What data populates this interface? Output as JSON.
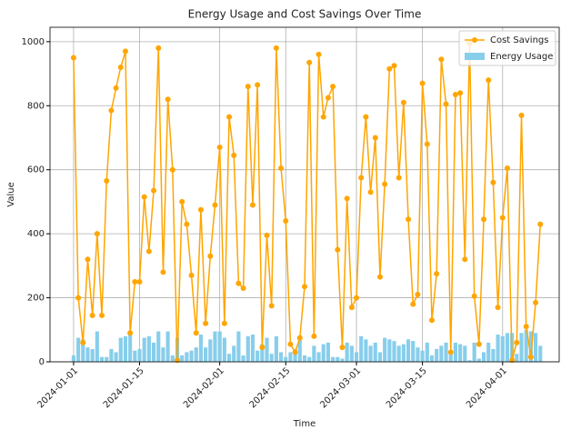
{
  "chart_data": {
    "type": "line_bar",
    "title": "Energy Usage and Cost Savings Over Time",
    "xlabel": "Time",
    "ylabel": "Value",
    "x": [
      "2024-01-01",
      "2024-01-02",
      "2024-01-03",
      "2024-01-04",
      "2024-01-05",
      "2024-01-06",
      "2024-01-07",
      "2024-01-08",
      "2024-01-09",
      "2024-01-10",
      "2024-01-11",
      "2024-01-12",
      "2024-01-13",
      "2024-01-14",
      "2024-01-15",
      "2024-01-16",
      "2024-01-17",
      "2024-01-18",
      "2024-01-19",
      "2024-01-20",
      "2024-01-21",
      "2024-01-22",
      "2024-01-23",
      "2024-01-24",
      "2024-01-25",
      "2024-01-26",
      "2024-01-27",
      "2024-01-28",
      "2024-01-29",
      "2024-01-30",
      "2024-01-31",
      "2024-02-01",
      "2024-02-02",
      "2024-02-03",
      "2024-02-04",
      "2024-02-05",
      "2024-02-06",
      "2024-02-07",
      "2024-02-08",
      "2024-02-09",
      "2024-02-10",
      "2024-02-11",
      "2024-02-12",
      "2024-02-13",
      "2024-02-14",
      "2024-02-15",
      "2024-02-16",
      "2024-02-17",
      "2024-02-18",
      "2024-02-19",
      "2024-02-20",
      "2024-02-21",
      "2024-02-22",
      "2024-02-23",
      "2024-02-24",
      "2024-02-25",
      "2024-02-26",
      "2024-02-27",
      "2024-02-28",
      "2024-02-29",
      "2024-03-01",
      "2024-03-02",
      "2024-03-03",
      "2024-03-04",
      "2024-03-05",
      "2024-03-06",
      "2024-03-07",
      "2024-03-08",
      "2024-03-09",
      "2024-03-10",
      "2024-03-11",
      "2024-03-12",
      "2024-03-13",
      "2024-03-14",
      "2024-03-15",
      "2024-03-16",
      "2024-03-17",
      "2024-03-18",
      "2024-03-19",
      "2024-03-20",
      "2024-03-21",
      "2024-03-22",
      "2024-03-23",
      "2024-03-24",
      "2024-03-25",
      "2024-03-26",
      "2024-03-27",
      "2024-03-28",
      "2024-03-29",
      "2024-03-30",
      "2024-03-31",
      "2024-04-01",
      "2024-04-02",
      "2024-04-03",
      "2024-04-04",
      "2024-04-05",
      "2024-04-06",
      "2024-04-07",
      "2024-04-08",
      "2024-04-09"
    ],
    "series": [
      {
        "name": "Cost Savings",
        "kind": "line",
        "color": "#FFA500",
        "values": [
          950,
          200,
          60,
          320,
          145,
          400,
          145,
          565,
          785,
          855,
          920,
          970,
          90,
          250,
          250,
          515,
          345,
          535,
          980,
          280,
          820,
          600,
          5,
          500,
          430,
          270,
          90,
          475,
          120,
          330,
          490,
          670,
          120,
          765,
          645,
          245,
          230,
          860,
          490,
          865,
          45,
          395,
          175,
          980,
          605,
          440,
          55,
          30,
          75,
          235,
          935,
          80,
          960,
          765,
          825,
          860,
          350,
          45,
          510,
          170,
          200,
          575,
          765,
          530,
          700,
          265,
          555,
          915,
          925,
          575,
          810,
          445,
          180,
          210,
          870,
          680,
          130,
          275,
          945,
          805,
          30,
          835,
          840,
          320,
          995,
          205,
          55,
          445,
          880,
          560,
          170,
          450,
          605,
          5,
          60,
          770,
          110,
          15,
          185,
          430
        ]
      },
      {
        "name": "Energy Usage",
        "kind": "bar",
        "color": "#87CEEB",
        "values": [
          20,
          75,
          70,
          45,
          40,
          95,
          15,
          15,
          40,
          30,
          75,
          80,
          85,
          35,
          40,
          75,
          80,
          60,
          95,
          45,
          95,
          20,
          75,
          20,
          30,
          35,
          45,
          85,
          45,
          70,
          95,
          95,
          75,
          25,
          50,
          95,
          20,
          80,
          85,
          35,
          55,
          75,
          25,
          80,
          30,
          15,
          30,
          40,
          70,
          20,
          15,
          50,
          30,
          55,
          60,
          15,
          15,
          10,
          60,
          50,
          30,
          80,
          70,
          50,
          60,
          30,
          75,
          70,
          65,
          50,
          55,
          70,
          65,
          45,
          35,
          60,
          20,
          40,
          50,
          60,
          25,
          60,
          55,
          50,
          5,
          60,
          10,
          30,
          60,
          40,
          85,
          80,
          90,
          90,
          25,
          90,
          100,
          95,
          90,
          50
        ]
      }
    ],
    "xlim": [
      "2023-12-27",
      "2024-04-13"
    ],
    "xticks": [
      "2024-01-01",
      "2024-01-15",
      "2024-02-01",
      "2024-02-15",
      "2024-03-01",
      "2024-03-15",
      "2024-04-01"
    ],
    "ylim": [
      0,
      1045
    ],
    "yticks": [
      0,
      200,
      400,
      600,
      800,
      1000
    ],
    "grid": true,
    "legend": "upper right"
  }
}
